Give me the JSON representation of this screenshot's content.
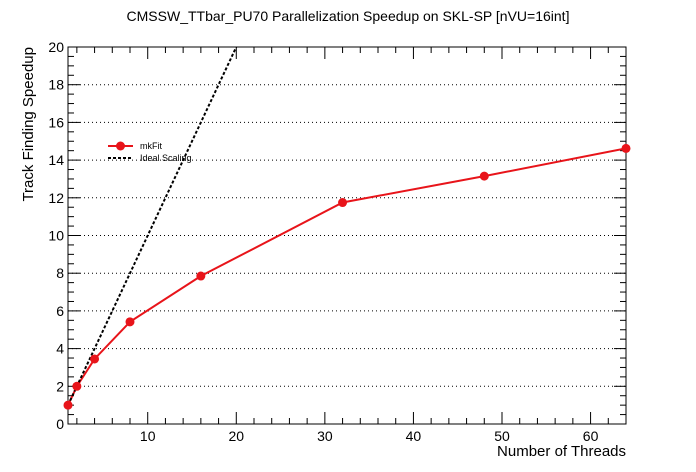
{
  "chart_data": {
    "type": "line",
    "title": "CMSSW_TTbar_PU70 Parallelization Speedup on SKL-SP [nVU=16int]",
    "xlabel": "Number of Threads",
    "ylabel": "Track Finding Speedup",
    "xlim": [
      1,
      64
    ],
    "ylim": [
      0,
      20
    ],
    "x_ticks": [
      10,
      20,
      30,
      40,
      50,
      60
    ],
    "y_ticks": [
      0,
      2,
      4,
      6,
      8,
      10,
      12,
      14,
      16,
      18,
      20
    ],
    "grid": "horizontal dotted",
    "legend_position": "upper-left",
    "series": [
      {
        "name": "mkFit",
        "style": "solid line with circle markers",
        "color": "#e8141a",
        "points": [
          [
            1,
            1.0
          ],
          [
            2,
            2.0
          ],
          [
            4,
            3.45
          ],
          [
            8,
            5.42
          ],
          [
            16,
            7.85
          ],
          [
            32,
            11.75
          ],
          [
            48,
            13.15
          ],
          [
            64,
            14.62
          ]
        ]
      },
      {
        "name": "Ideal Scaling",
        "style": "dashed",
        "color": "#000000",
        "points": [
          [
            1,
            1
          ],
          [
            20,
            20
          ]
        ]
      }
    ]
  }
}
